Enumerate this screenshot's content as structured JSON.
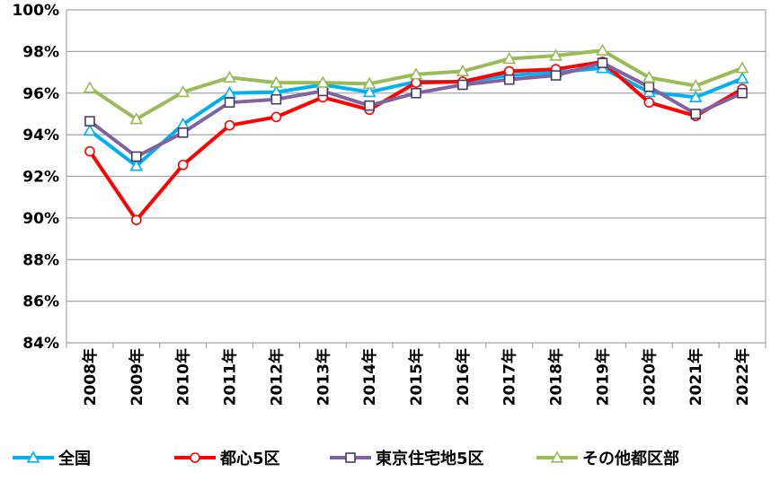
{
  "chart_data": {
    "type": "line",
    "categories": [
      "2008年",
      "2009年",
      "2010年",
      "2011年",
      "2012年",
      "2013年",
      "2014年",
      "2015年",
      "2016年",
      "2017年",
      "2018年",
      "2019年",
      "2020年",
      "2021年",
      "2022年"
    ],
    "ylim": [
      84,
      100
    ],
    "ytick_labels": [
      "84%",
      "86%",
      "88%",
      "90%",
      "92%",
      "94%",
      "96%",
      "98%",
      "100%"
    ],
    "ytick_values": [
      84,
      86,
      88,
      90,
      92,
      94,
      96,
      98,
      100
    ],
    "grid": true,
    "legend_position": "bottom",
    "series": [
      {
        "name": "全国",
        "color": "#00B0F0",
        "marker": "triangle",
        "values": [
          94.2,
          92.5,
          94.5,
          96.0,
          96.05,
          96.4,
          96.05,
          96.55,
          96.55,
          96.85,
          97.0,
          97.2,
          96.05,
          95.8,
          96.7
        ]
      },
      {
        "name": "都心5区",
        "color": "#FF0000",
        "marker": "circle",
        "values": [
          93.2,
          89.9,
          92.55,
          94.45,
          94.85,
          95.8,
          95.2,
          96.5,
          96.55,
          97.05,
          97.15,
          97.5,
          95.55,
          94.9,
          96.2
        ]
      },
      {
        "name": "東京住宅地5区",
        "color": "#8064A2",
        "marker": "square",
        "values": [
          94.65,
          92.95,
          94.1,
          95.55,
          95.7,
          96.1,
          95.4,
          96.0,
          96.4,
          96.65,
          96.85,
          97.45,
          96.3,
          95.0,
          96.0
        ]
      },
      {
        "name": "その他都区部",
        "color": "#9BBB59",
        "marker": "triangle",
        "values": [
          96.25,
          94.75,
          96.05,
          96.75,
          96.5,
          96.5,
          96.45,
          96.9,
          97.05,
          97.65,
          97.8,
          98.05,
          96.75,
          96.35,
          97.2
        ]
      }
    ]
  }
}
